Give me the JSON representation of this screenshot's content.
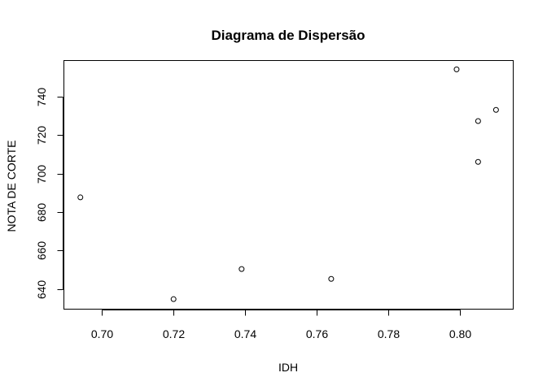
{
  "chart_data": {
    "type": "scatter",
    "title": "Diagrama de Dispersão",
    "xlabel": "IDH",
    "ylabel": "NOTA DE CORTE",
    "xlim": [
      0.6894,
      0.8148
    ],
    "ylim": [
      629.6,
      758.6
    ],
    "x_ticks": [
      0.7,
      0.72,
      0.74,
      0.76,
      0.78,
      0.8
    ],
    "x_tick_labels": [
      "0.70",
      "0.72",
      "0.74",
      "0.76",
      "0.78",
      "0.80"
    ],
    "y_ticks": [
      640,
      660,
      680,
      700,
      720,
      740
    ],
    "y_tick_labels": [
      "640",
      "660",
      "680",
      "700",
      "720",
      "740"
    ],
    "grid": false,
    "legend": "none",
    "marker": "open-circle",
    "points": [
      {
        "x": 0.694,
        "y": 687.6
      },
      {
        "x": 0.72,
        "y": 634.8
      },
      {
        "x": 0.739,
        "y": 650.4
      },
      {
        "x": 0.764,
        "y": 645.3
      },
      {
        "x": 0.799,
        "y": 754.0
      },
      {
        "x": 0.805,
        "y": 727.2
      },
      {
        "x": 0.805,
        "y": 706.0
      },
      {
        "x": 0.81,
        "y": 733.0
      }
    ]
  }
}
